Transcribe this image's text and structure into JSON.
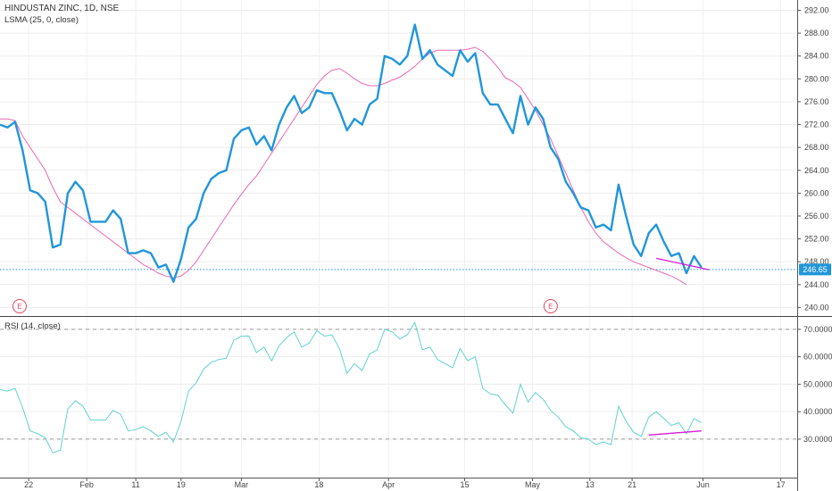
{
  "header": {
    "symbol": "HINDUSTAN ZINC, 1D, NSE",
    "indicator": "LSMA (25, 0, close)",
    "rsi_label": "RSI (14, close)"
  },
  "price_badge": "246.65",
  "earnings_marker": "E",
  "colors": {
    "price": "#2196d9",
    "lsma": "#e869b5",
    "rsi": "#5fd3cf",
    "divergence": "#d81bd8",
    "current_line": "#2196d9",
    "badge_bg": "#2196d9"
  },
  "chart_data": [
    {
      "type": "line",
      "title": "HINDUSTAN ZINC, 1D, NSE",
      "x_ticks": [
        "22",
        "Feb",
        "11",
        "19",
        "Mar",
        "18",
        "Apr",
        "15",
        "May",
        "13",
        "21",
        "Jun",
        "17"
      ],
      "y_ticks": [
        "240.00",
        "244.00",
        "248.00",
        "252.00",
        "256.00",
        "260.00",
        "264.00",
        "268.00",
        "272.00",
        "276.00",
        "280.00",
        "284.00",
        "288.00",
        "292.00"
      ],
      "ylim": [
        238.5,
        293.8
      ],
      "grid": true,
      "current_price": 246.65,
      "series": [
        {
          "name": "HINDUSTAN ZINC",
          "values": [
            272,
            271.5,
            272.5,
            267.5,
            260.5,
            260,
            258.5,
            250.5,
            251,
            260,
            262,
            260.5,
            255,
            255,
            255,
            257,
            255.5,
            249.5,
            249.5,
            250,
            249.5,
            247,
            247.5,
            244.5,
            248.5,
            254,
            255.5,
            260,
            262.5,
            263.5,
            264,
            269.5,
            271,
            271.5,
            268.5,
            270,
            267.5,
            272,
            275,
            277,
            274,
            275,
            278,
            277.5,
            277.5,
            274.5,
            271,
            273,
            272,
            275.5,
            276.5,
            284,
            283.5,
            282.5,
            284,
            289.5,
            283.5,
            285,
            282.5,
            281.5,
            280.5,
            285,
            283,
            284.5,
            277.5,
            275.5,
            275.5,
            273,
            270.5,
            277,
            272,
            275,
            273,
            268,
            266,
            262,
            260,
            257.5,
            257,
            254,
            254.5,
            253.5,
            261.5,
            256,
            251,
            249,
            253,
            254.5,
            251.5,
            249,
            249.5,
            246,
            249,
            247
          ]
        },
        {
          "name": "LSMA (25, 0, close)",
          "values": [
            273,
            273,
            272.7,
            270,
            268,
            266,
            264,
            261,
            258.5,
            257.5,
            256.5,
            255.5,
            254.5,
            253.5,
            252.5,
            251.5,
            250.5,
            249.5,
            248.5,
            247.5,
            246.8,
            246,
            245.5,
            245.2,
            245.5,
            246.5,
            248,
            250,
            252,
            254,
            256,
            258,
            259.8,
            261.5,
            263,
            265,
            267,
            269,
            271,
            273,
            275,
            277,
            279,
            280.5,
            281.5,
            281.8,
            281,
            280,
            279.2,
            278.8,
            278.8,
            279.2,
            279.8,
            280.3,
            281.2,
            282.2,
            283.5,
            284.5,
            285,
            285,
            285,
            285,
            285.2,
            285.5,
            284.8,
            283.5,
            282,
            280.2,
            279.5,
            278.5,
            276.5,
            274.5,
            272,
            269.5,
            266.5,
            263.5,
            260.5,
            257.5,
            255,
            253,
            251.5,
            250.5,
            249.5,
            248.7,
            248,
            247.5,
            247,
            246.5,
            246,
            245.5,
            244.8,
            244
          ]
        }
      ],
      "annotations": {
        "divergence_line": {
          "x_index": [
            87,
            94
          ],
          "y": [
            248.6,
            246.6
          ]
        },
        "earnings_markers_x_index": [
          0,
          73
        ]
      }
    },
    {
      "type": "line",
      "title": "RSI (14, close)",
      "y_ticks": [
        "30.0000",
        "40.0000",
        "50.0000",
        "60.0000",
        "70.0000"
      ],
      "ylim": [
        16,
        74.5
      ],
      "bands": [
        30,
        70
      ],
      "grid": true,
      "series": [
        {
          "name": "RSI (14, close)",
          "values": [
            48,
            47.5,
            48.5,
            41.5,
            33,
            32,
            30.5,
            25,
            26,
            41,
            44,
            42,
            37,
            37,
            37,
            40.5,
            39,
            33,
            33.5,
            34.5,
            33,
            31,
            32.5,
            29,
            36.5,
            47.5,
            50.5,
            55.5,
            58,
            59,
            59.5,
            66,
            67.5,
            67.5,
            61.5,
            63.5,
            58.5,
            64,
            67,
            69,
            63.5,
            65,
            69.5,
            67.5,
            68,
            63,
            54,
            57.5,
            55,
            61,
            62.5,
            70,
            69,
            66.5,
            68,
            72.5,
            62.5,
            63.5,
            59,
            57.5,
            56,
            63,
            58.5,
            60,
            48.5,
            46.5,
            46,
            42.5,
            39.5,
            50,
            43.5,
            47,
            44.5,
            40.5,
            38,
            34.5,
            33,
            30.5,
            30,
            28,
            29,
            28,
            42,
            36.5,
            32.5,
            31,
            38,
            40,
            37.5,
            35,
            36,
            32,
            37.5,
            36
          ]
        }
      ],
      "annotations": {
        "divergence_line": {
          "x_index": [
            86,
            93
          ],
          "y": [
            31.5,
            33
          ]
        }
      }
    }
  ]
}
